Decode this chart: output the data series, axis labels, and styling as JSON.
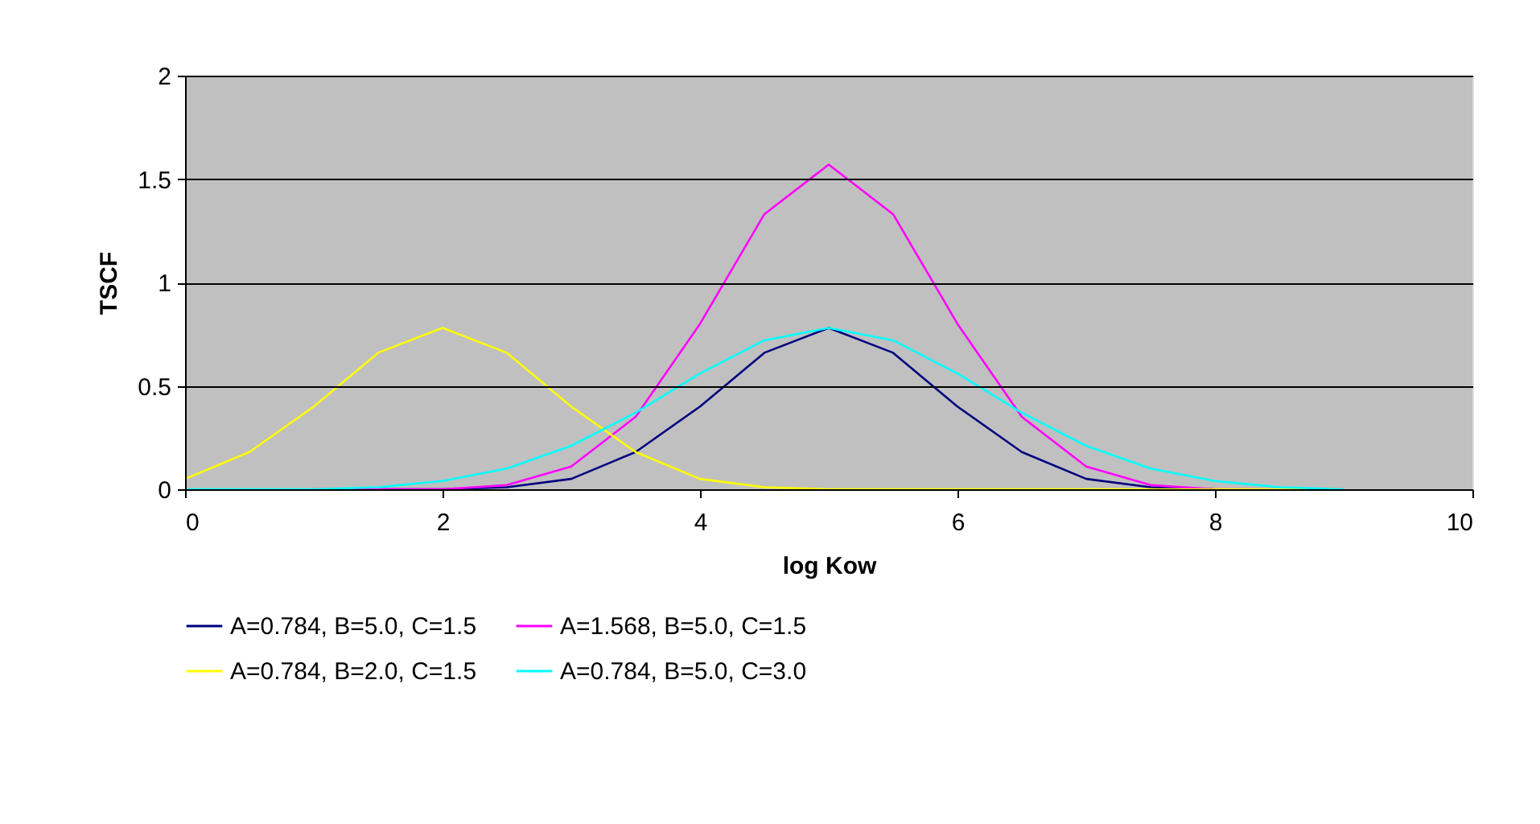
{
  "chart_data": {
    "type": "line",
    "xlabel": "log Kow",
    "ylabel": "TSCF",
    "x": [
      0,
      0.5,
      1,
      1.5,
      2,
      2.5,
      3,
      3.5,
      4,
      4.5,
      5,
      5.5,
      6,
      6.5,
      7,
      7.5,
      8,
      8.5,
      9
    ],
    "series": [
      {
        "name": "A=0.784, B=5.0, C=1.5",
        "color": "#000080",
        "values": [
          null,
          null,
          null,
          0,
          0,
          0.01,
          0.05,
          0.18,
          0.4,
          0.66,
          0.78,
          0.66,
          0.4,
          0.18,
          0.05,
          0.01,
          0,
          null,
          null
        ]
      },
      {
        "name": "A=1.568, B=5.0, C=1.5",
        "color": "#ff00ff",
        "values": [
          null,
          null,
          0,
          0,
          0,
          0.02,
          0.11,
          0.35,
          0.8,
          1.33,
          1.57,
          1.33,
          0.8,
          0.35,
          0.11,
          0.02,
          0,
          0,
          0
        ]
      },
      {
        "name": "A=0.784, B=2.0, C=1.5",
        "color": "#ffff00",
        "values": [
          0.05,
          0.18,
          0.4,
          0.66,
          0.78,
          0.66,
          0.4,
          0.18,
          0.05,
          0.01,
          0,
          0,
          0,
          0,
          0,
          0,
          0,
          0,
          0
        ]
      },
      {
        "name": "A=0.784, B=5.0, C=3.0",
        "color": "#00ffff",
        "values": [
          0,
          0,
          0,
          0.01,
          0.04,
          0.1,
          0.21,
          0.37,
          0.56,
          0.72,
          0.78,
          0.72,
          0.56,
          0.37,
          0.21,
          0.1,
          0.04,
          0.01,
          0
        ]
      }
    ],
    "xlim": [
      0,
      10
    ],
    "xticks": [
      0,
      2,
      4,
      6,
      8,
      10
    ],
    "ylim": [
      0,
      2
    ],
    "yticks": [
      0,
      0.5,
      1,
      1.5,
      2
    ],
    "grid": "y",
    "legend": "bottom",
    "marker": "none",
    "line_style": "solid"
  }
}
